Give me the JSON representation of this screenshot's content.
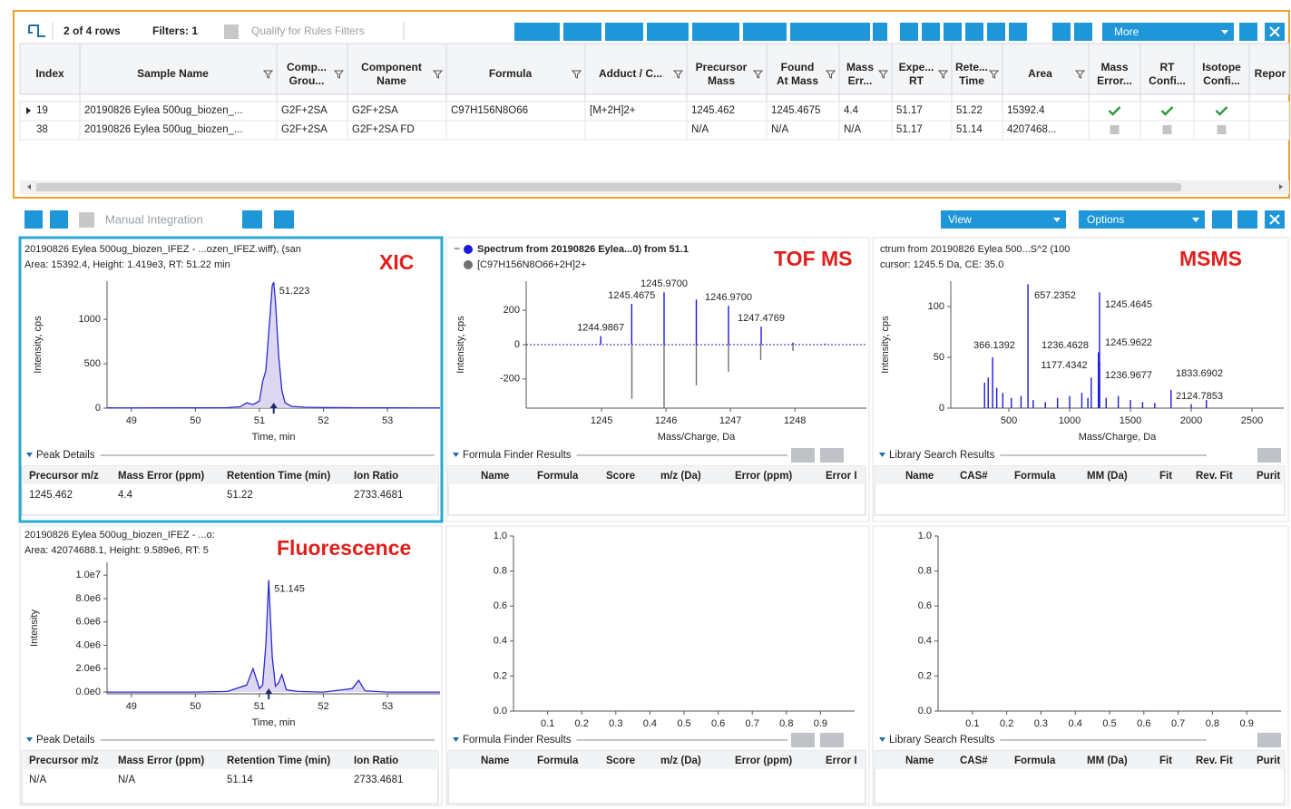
{
  "toolbar": {
    "row_count": "2 of 4 rows",
    "filters": "Filters: 1",
    "qualify": "Qualify for Rules Filters",
    "more": "More"
  },
  "table": {
    "columns": [
      [
        "Index"
      ],
      [
        "Sample Name"
      ],
      [
        "Comp...",
        "Grou..."
      ],
      [
        "Component",
        "Name"
      ],
      [
        "Formula"
      ],
      [
        "Adduct / C..."
      ],
      [
        "Precursor",
        "Mass"
      ],
      [
        "Found",
        "At Mass"
      ],
      [
        "Mass",
        "Err..."
      ],
      [
        "Expe...",
        "RT"
      ],
      [
        "Rete...",
        "Time"
      ],
      [
        "Area"
      ],
      [
        "Mass",
        "Error..."
      ],
      [
        "RT",
        "Confi..."
      ],
      [
        "Isotope",
        "Confi..."
      ],
      [
        "Repor"
      ]
    ],
    "rows": [
      {
        "cells": [
          "19",
          "20190826 Eylea 500ug_biozen_...",
          "G2F+2SA",
          "G2F+2SA",
          "C97H156N8O66",
          "[M+2H]2+",
          "1245.462",
          "1245.4675",
          "4.4",
          "51.17",
          "51.22",
          "15392.4"
        ],
        "checks": [
          true,
          true,
          true
        ]
      },
      {
        "cells": [
          "38",
          "20190826 Eylea 500ug_biozen_...",
          "G2F+2SA",
          "G2F+2SA FD",
          null,
          null,
          "N/A",
          "N/A",
          "N/A",
          "51.17",
          "51.14",
          "4207468..."
        ],
        "checks": [
          false,
          false,
          false
        ]
      }
    ]
  },
  "panel_toolbar": {
    "manual_integration": "Manual Integration",
    "view": "View",
    "options": "Options"
  },
  "panes": [
    {
      "type": "chromatogram",
      "header": [
        "20190826 Eylea 500ug_biozen_IFEZ - ...ozen_IFEZ.wiff), (san",
        "Area: 15392.4, Height: 1.419e3, RT: 51.22 min"
      ],
      "tag": "XIC",
      "ylabel": "Intensity, cps",
      "xlabel": "Time, min",
      "xlim": [
        48.62,
        53.82
      ],
      "ylim": [
        0,
        1430
      ],
      "xticks": [
        49,
        50,
        51,
        52,
        53
      ],
      "yticks": [
        0,
        500,
        1000
      ],
      "color": "#2a2ad0",
      "trace": {
        "x": [
          48.62,
          49.0,
          49.5,
          50.0,
          50.5,
          50.7,
          50.8,
          50.9,
          51.0,
          51.05,
          51.1,
          51.15,
          51.2,
          51.223,
          51.25,
          51.3,
          51.35,
          51.4,
          51.5,
          51.7,
          52.0,
          52.5,
          53.0,
          53.5,
          53.82
        ],
        "y": [
          3,
          2,
          4,
          3,
          5,
          15,
          60,
          40,
          80,
          300,
          420,
          900,
          1380,
          1419,
          1200,
          600,
          200,
          60,
          20,
          10,
          6,
          4,
          3,
          2,
          2
        ]
      },
      "peak": {
        "x": 51.223,
        "y": 1419
      },
      "results": {
        "title": "Peak Details",
        "columns": [
          "Precursor m/z",
          "Mass Error (ppm)",
          "Retention Time (min)",
          "Ion Ratio"
        ],
        "rows": [
          [
            "1245.462",
            "4.4",
            "51.22",
            "2733.4681"
          ]
        ]
      }
    },
    {
      "type": "spectrum",
      "tag": "TOF MS",
      "ylabel": "Intensity, cps",
      "xlabel": "Mass/Charge, Da",
      "xlim": [
        1243.83,
        1249.11
      ],
      "ylim": [
        -370,
        370
      ],
      "xticks": [
        1245,
        1246,
        1247,
        1248
      ],
      "yticks": [
        -200,
        0,
        200
      ],
      "series": [
        {
          "name": "Spectrum from 20190826 Eylea...0) from 51.1",
          "color": "#1a1ad8",
          "peaks": [
            {
              "mz": 1244.9867,
              "intensity": 50,
              "label": "1244.9867"
            },
            {
              "mz": 1245.4675,
              "intensity": 237,
              "label": "1245.4675"
            },
            {
              "mz": 1245.97,
              "intensity": 305,
              "label": "1245.9700"
            },
            {
              "mz": 1246.47,
              "intensity": 263,
              "label": null
            },
            {
              "mz": 1246.97,
              "intensity": 226,
              "label": "1246.9700"
            },
            {
              "mz": 1247.4769,
              "intensity": 105,
              "label": "1247.4769"
            },
            {
              "mz": 1247.97,
              "intensity": 12,
              "label": null
            },
            {
              "mz": 1248.47,
              "intensity": 6,
              "label": null
            }
          ]
        },
        {
          "name": "[C97H156N8O66+2H]2+",
          "color": "#707070",
          "peaks": [
            {
              "mz": 1245.47,
              "intensity": -316
            },
            {
              "mz": 1245.97,
              "intensity": -368
            },
            {
              "mz": 1246.47,
              "intensity": -237
            },
            {
              "mz": 1246.97,
              "intensity": -158
            },
            {
              "mz": 1247.47,
              "intensity": -89
            },
            {
              "mz": 1247.97,
              "intensity": -37
            }
          ]
        }
      ],
      "results": {
        "title": "Formula Finder Results",
        "columns": [
          "Name",
          "Formula",
          "Score",
          "m/z (Da)",
          "Error (ppm)",
          "Error I"
        ],
        "rows": []
      }
    },
    {
      "type": "spectrum",
      "header": [
        "ctrum from 20190826 Eylea 500...S^2 (100",
        "cursor: 1245.5 Da, CE: 35.0"
      ],
      "tag": "MSMS",
      "ylabel": "Intensity, cps",
      "xlabel": "Mass/Charge, Da",
      "xlim": [
        22,
        2761
      ],
      "ylim": [
        0,
        125
      ],
      "xticks": [
        500,
        1000,
        1500,
        2000,
        2500
      ],
      "yticks": [
        0,
        50,
        100
      ],
      "series": [
        {
          "color": "#1a1ad8",
          "peaks": [
            {
              "mz": 300,
              "intensity": 25,
              "label": null
            },
            {
              "mz": 330,
              "intensity": 30,
              "label": null
            },
            {
              "mz": 366.1392,
              "intensity": 50,
              "label": "366.1392"
            },
            {
              "mz": 400,
              "intensity": 20,
              "label": null
            },
            {
              "mz": 450,
              "intensity": 15,
              "label": null
            },
            {
              "mz": 520,
              "intensity": 10,
              "label": null
            },
            {
              "mz": 600,
              "intensity": 12,
              "label": null
            },
            {
              "mz": 657.2352,
              "intensity": 122,
              "label": "657.2352"
            },
            {
              "mz": 700,
              "intensity": 8,
              "label": null
            },
            {
              "mz": 800,
              "intensity": 6,
              "label": null
            },
            {
              "mz": 900,
              "intensity": 10,
              "label": null
            },
            {
              "mz": 1000,
              "intensity": 12,
              "label": null
            },
            {
              "mz": 1100,
              "intensity": 15,
              "label": null
            },
            {
              "mz": 1150,
              "intensity": 10,
              "label": null
            },
            {
              "mz": 1177.4342,
              "intensity": 30,
              "label": "1177.4342"
            },
            {
              "mz": 1236.4628,
              "intensity": 55,
              "label": "1236.4628"
            },
            {
              "mz": 1236.9677,
              "intensity": 25,
              "label": "1236.9677"
            },
            {
              "mz": 1245.4645,
              "intensity": 114,
              "label": "1245.4645"
            },
            {
              "mz": 1245.9622,
              "intensity": 45,
              "label": "1245.9622"
            },
            {
              "mz": 1300,
              "intensity": 10,
              "label": null
            },
            {
              "mz": 1400,
              "intensity": 12,
              "label": null
            },
            {
              "mz": 1500,
              "intensity": 8,
              "label": null
            },
            {
              "mz": 1600,
              "intensity": 6,
              "label": null
            },
            {
              "mz": 1700,
              "intensity": 5,
              "label": null
            },
            {
              "mz": 1833.6902,
              "intensity": 18,
              "label": "1833.6902"
            },
            {
              "mz": 2000,
              "intensity": 4,
              "label": null
            },
            {
              "mz": 2124.7853,
              "intensity": 8,
              "label": "2124.7853"
            }
          ]
        }
      ],
      "results": {
        "title": "Library Search Results",
        "columns": [
          "Name",
          "CAS#",
          "Formula",
          "MM (Da)",
          "Fit",
          "Rev. Fit",
          "Purit"
        ],
        "rows": []
      }
    },
    {
      "type": "chromatogram",
      "header": [
        "20190826 Eylea 500ug_biozen_IFEZ - ...o:",
        "Area: 42074688.1, Height: 9.589e6, RT: 5"
      ],
      "tag": "Fluorescence",
      "ylabel": "Intensity",
      "xlabel": "Time, min",
      "xlim": [
        48.62,
        53.82
      ],
      "ylim": [
        -150000,
        11100000
      ],
      "xticks": [
        49,
        50,
        51,
        52,
        53
      ],
      "yticks": [
        {
          "value": 0,
          "label": "0.0e0"
        },
        {
          "value": 2000000,
          "label": "2.0e6"
        },
        {
          "value": 4000000,
          "label": "4.0e6"
        },
        {
          "value": 6000000,
          "label": "6.0e6"
        },
        {
          "value": 8000000,
          "label": "8.0e6"
        },
        {
          "value": 10000000,
          "label": "1.0e7"
        }
      ],
      "color": "#2a2ad0",
      "trace": {
        "x": [
          48.62,
          49.5,
          50.0,
          50.5,
          50.8,
          50.9,
          51.0,
          51.05,
          51.1,
          51.145,
          51.2,
          51.25,
          51.3,
          51.35,
          51.42,
          51.6,
          52.0,
          52.45,
          52.55,
          52.65,
          53.0,
          53.5,
          53.82
        ],
        "y": [
          0,
          0,
          0,
          50000,
          600000,
          2000000,
          300000,
          600000,
          4000000,
          9589000,
          3000000,
          500000,
          800000,
          1500000,
          200000,
          50000,
          0,
          300000,
          1000000,
          100000,
          0,
          0,
          0
        ]
      },
      "peak": {
        "x": 51.145,
        "y": 9589000
      },
      "results": {
        "title": "Peak Details",
        "columns": [
          "Precursor m/z",
          "Mass Error (ppm)",
          "Retention Time (min)",
          "Ion Ratio"
        ],
        "rows": [
          [
            "N/A",
            "N/A",
            "51.14",
            "2733.4681"
          ]
        ]
      }
    },
    {
      "type": "empty",
      "xlim": [
        0,
        1
      ],
      "ylim": [
        0,
        1
      ],
      "xticks": [
        0.1,
        0.2,
        0.3,
        0.4,
        0.5,
        0.6,
        0.7,
        0.8,
        0.9
      ],
      "yticks": [
        {
          "value": 0,
          "label": "0.0"
        },
        0.2,
        0.4,
        0.6,
        0.8,
        {
          "value": 1,
          "label": "1.0"
        }
      ],
      "results": {
        "title": "Formula Finder Results",
        "columns": [
          "Name",
          "Formula",
          "Score",
          "m/z (Da)",
          "Error (ppm)",
          "Error I"
        ],
        "rows": []
      }
    },
    {
      "type": "empty",
      "xlim": [
        0,
        1
      ],
      "ylim": [
        0,
        1
      ],
      "xticks": [
        0.1,
        0.2,
        0.3,
        0.4,
        0.5,
        0.6,
        0.7,
        0.8,
        0.9
      ],
      "yticks": [
        {
          "value": 0,
          "label": "0.0"
        },
        0.2,
        0.4,
        0.6,
        0.8,
        {
          "value": 1,
          "label": "1.0"
        }
      ],
      "results": {
        "title": "Library Search Results",
        "columns": [
          "Name",
          "CAS#",
          "Formula",
          "MM (Da)",
          "Fit",
          "Rev. Fit",
          "Purit"
        ],
        "rows": []
      }
    }
  ]
}
